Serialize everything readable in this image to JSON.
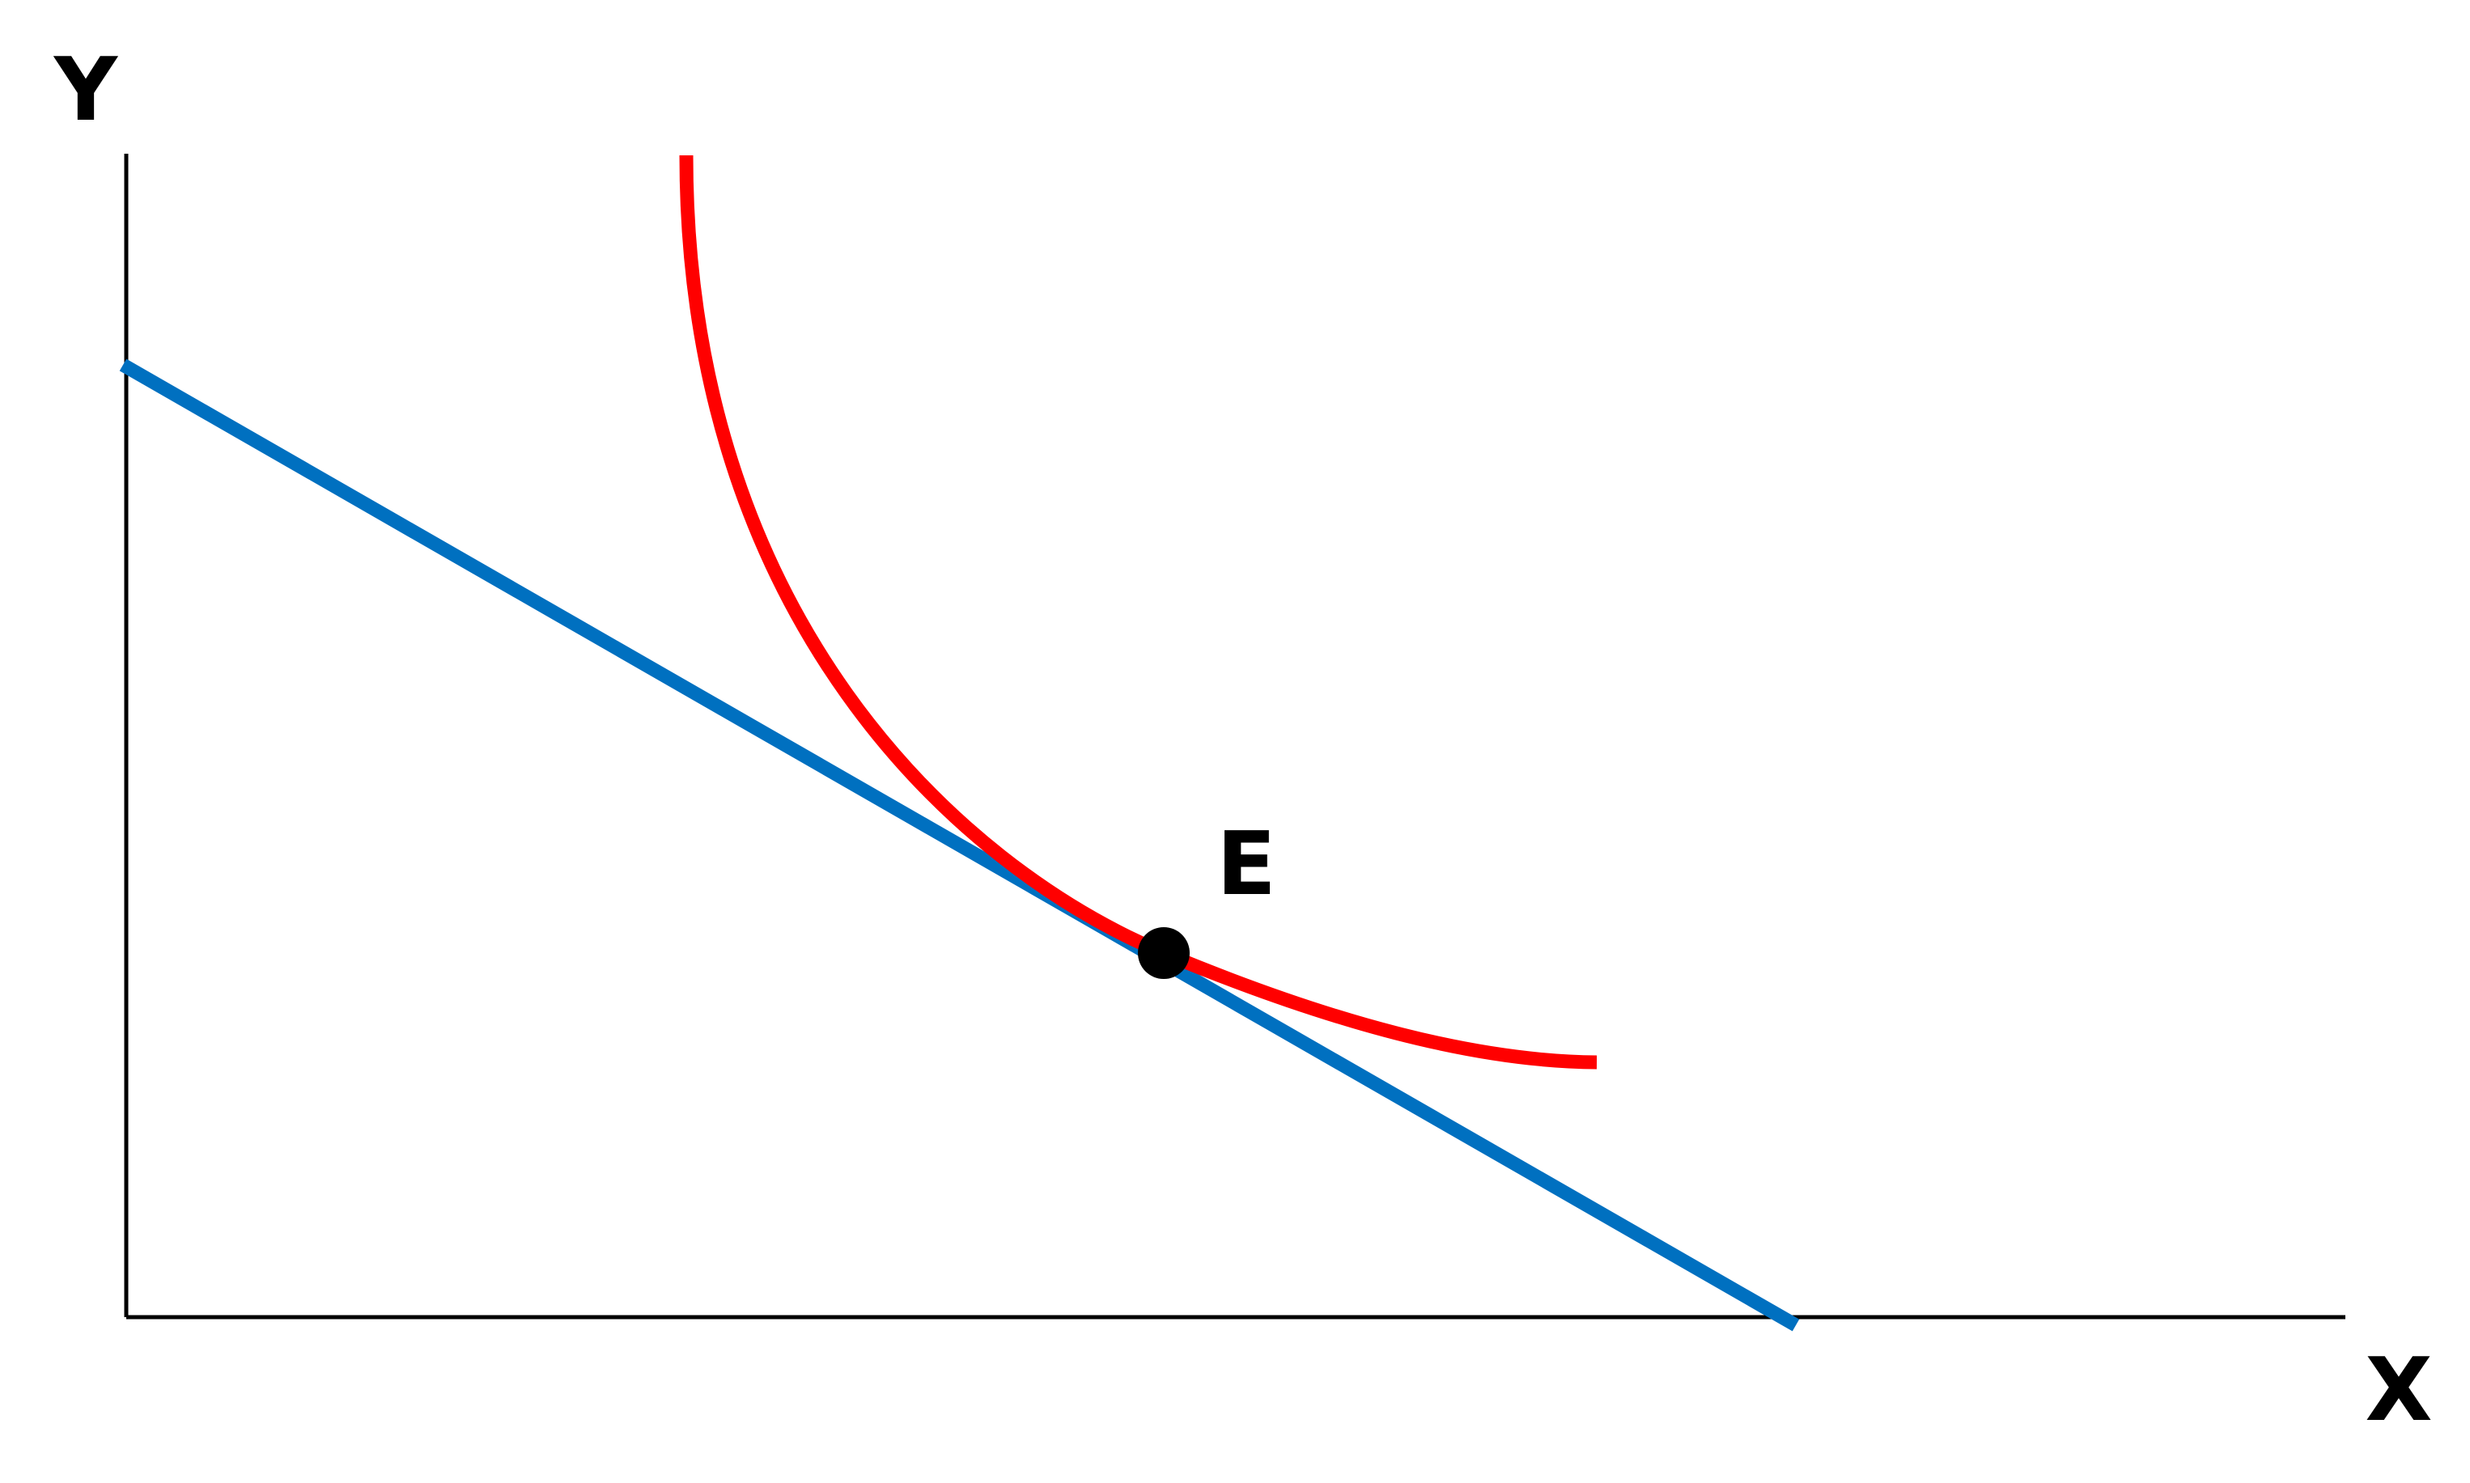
{
  "axes": {
    "x_label": "X",
    "y_label": "Y"
  },
  "point": {
    "label": "E"
  },
  "colors": {
    "axis": "#000000",
    "budget_line": "#0070C0",
    "indifference_curve": "#FF0000",
    "point": "#000000"
  }
}
